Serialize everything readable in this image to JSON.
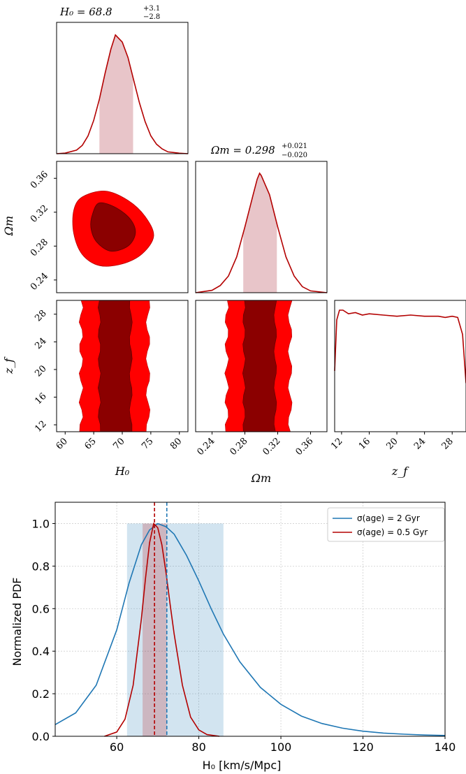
{
  "corner": {
    "h0_title": "H₀ = 68.8",
    "h0_title_sup": "+3.1",
    "h0_title_sub": "−2.8",
    "om_title": "Ωm = 0.298",
    "om_title_sup": "+0.021",
    "om_title_sub": "−0.020",
    "h0_label": "H₀",
    "om_label": "Ωm",
    "zf_label": "z_f",
    "colors": {
      "line": "#b30000",
      "band": "#e8c5c9",
      "inner": "#8b0000",
      "outer": "#ff0000"
    }
  },
  "chart_data": [
    {
      "type": "line",
      "panel": "H0 marginal",
      "title": "H₀ = 68.8 (+3.1 / −2.8)",
      "median": 68.8,
      "plus": 3.1,
      "minus": 2.8,
      "x_range": [
        58.5,
        81.5
      ],
      "x": [
        58.5,
        60,
        62,
        63,
        64,
        65,
        66,
        67,
        68,
        68.8,
        69,
        70,
        71,
        72,
        73,
        74,
        75,
        76,
        77,
        78,
        80,
        81.5
      ],
      "y": [
        0.0,
        0.005,
        0.03,
        0.07,
        0.15,
        0.28,
        0.46,
        0.68,
        0.88,
        1.0,
        0.99,
        0.94,
        0.81,
        0.62,
        0.43,
        0.27,
        0.15,
        0.08,
        0.04,
        0.015,
        0.004,
        0.0
      ],
      "band": [
        66.0,
        71.9
      ]
    },
    {
      "type": "line",
      "panel": "Ωm marginal",
      "title": "Ωm = 0.298 (+0.021 / −0.020)",
      "median": 0.298,
      "plus": 0.021,
      "minus": 0.02,
      "x_range": [
        0.22,
        0.38
      ],
      "x": [
        0.22,
        0.24,
        0.25,
        0.26,
        0.27,
        0.28,
        0.29,
        0.295,
        0.298,
        0.3,
        0.31,
        0.32,
        0.33,
        0.34,
        0.35,
        0.36,
        0.38
      ],
      "y": [
        0.0,
        0.02,
        0.06,
        0.14,
        0.3,
        0.55,
        0.82,
        0.95,
        1.0,
        0.98,
        0.82,
        0.55,
        0.3,
        0.14,
        0.05,
        0.015,
        0.0
      ],
      "band": [
        0.278,
        0.319
      ]
    },
    {
      "type": "line",
      "panel": "z_f marginal",
      "x_range": [
        11,
        30
      ],
      "x": [
        11,
        11.3,
        11.7,
        12.2,
        13,
        14,
        15,
        16,
        18,
        20,
        22,
        24,
        26,
        27,
        28,
        28.8,
        29.5,
        30
      ],
      "y": [
        0.5,
        0.92,
        1.0,
        1.0,
        0.97,
        0.98,
        0.96,
        0.97,
        0.96,
        0.95,
        0.96,
        0.95,
        0.95,
        0.94,
        0.95,
        0.94,
        0.8,
        0.4
      ],
      "xticks": [
        12,
        16,
        20,
        24,
        28
      ]
    },
    {
      "type": "scatter",
      "panel": "H0 vs Ωm contours",
      "x_range": [
        58.5,
        81.5
      ],
      "y_range": [
        0.225,
        0.38
      ],
      "xticks": [
        60,
        65,
        70,
        75,
        80
      ],
      "yticks": [
        0.24,
        0.28,
        0.32,
        0.36
      ],
      "inner_contour": [
        [
          66,
          0.331
        ],
        [
          69,
          0.325
        ],
        [
          71.5,
          0.311
        ],
        [
          72.3,
          0.295
        ],
        [
          71,
          0.28
        ],
        [
          68,
          0.274
        ],
        [
          65.5,
          0.285
        ],
        [
          64.5,
          0.302
        ],
        [
          64.8,
          0.318
        ]
      ],
      "outer_contour": [
        [
          63,
          0.338
        ],
        [
          67,
          0.345
        ],
        [
          71,
          0.334
        ],
        [
          74,
          0.315
        ],
        [
          75.5,
          0.292
        ],
        [
          73.5,
          0.271
        ],
        [
          70,
          0.259
        ],
        [
          66,
          0.257
        ],
        [
          63,
          0.27
        ],
        [
          61.5,
          0.295
        ],
        [
          61.5,
          0.322
        ]
      ]
    },
    {
      "type": "scatter",
      "panel": "H0 vs z_f contours",
      "x_range": [
        58.5,
        81.5
      ],
      "y_range": [
        11,
        30
      ],
      "yticks": [
        12,
        16,
        20,
        24,
        28
      ],
      "inner_band": [
        66.0,
        71.5
      ],
      "outer_band": [
        62.8,
        74.5
      ]
    },
    {
      "type": "scatter",
      "panel": "Ωm vs z_f contours",
      "x_range": [
        0.22,
        0.38
      ],
      "y_range": [
        11,
        30
      ],
      "xticks": [
        0.24,
        0.28,
        0.32,
        0.36
      ],
      "inner_band": [
        0.279,
        0.317
      ],
      "outer_band": [
        0.258,
        0.335
      ]
    },
    {
      "type": "line",
      "panel": "bottom",
      "xlabel": "H₀ [km/s/Mpc]",
      "ylabel": "Normalized PDF",
      "xlim": [
        45,
        140
      ],
      "ylim": [
        0,
        1.1
      ],
      "xticks": [
        60,
        80,
        100,
        120,
        140
      ],
      "yticks": [
        0.0,
        0.2,
        0.4,
        0.6,
        0.8,
        1.0
      ],
      "grid": true,
      "legend": "top-right",
      "series": [
        {
          "name": "σ(age) = 2 Gyr",
          "color": "#1f77b4",
          "x": [
            45,
            50,
            55,
            60,
            63,
            66,
            68,
            70,
            72,
            74,
            77,
            80,
            83,
            86,
            90,
            95,
            100,
            105,
            110,
            115,
            120,
            125,
            130,
            135,
            140
          ],
          "y": [
            0.055,
            0.11,
            0.24,
            0.5,
            0.72,
            0.9,
            0.97,
            1.0,
            0.985,
            0.95,
            0.85,
            0.73,
            0.6,
            0.48,
            0.35,
            0.23,
            0.15,
            0.095,
            0.06,
            0.038,
            0.024,
            0.015,
            0.01,
            0.006,
            0.004
          ],
          "band": [
            62.5,
            86
          ],
          "marker_x": 72.2
        },
        {
          "name": "σ(age) = 0.5 Gyr",
          "color": "#b30000",
          "x": [
            57,
            60,
            62,
            64,
            66,
            67,
            68,
            69,
            70,
            71,
            72,
            73,
            74,
            76,
            78,
            80,
            82,
            85
          ],
          "y": [
            0.0,
            0.02,
            0.08,
            0.24,
            0.55,
            0.74,
            0.91,
            1.0,
            0.98,
            0.9,
            0.77,
            0.62,
            0.48,
            0.24,
            0.09,
            0.03,
            0.008,
            0.0
          ],
          "band": [
            66.3,
            72.2
          ],
          "marker_x": 69.2
        }
      ]
    }
  ]
}
